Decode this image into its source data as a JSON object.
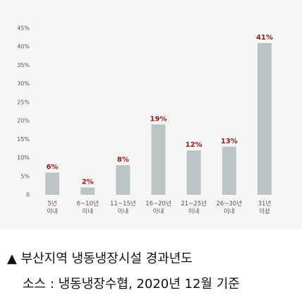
{
  "chart_data": {
    "type": "bar",
    "title": "▲ 부산지역 냉동냉장시설 경과년도",
    "source": "소스 : 냉동냉장수협, 2020년 12월 기준",
    "categories": [
      "5년\n이내",
      "6~10년\n이내",
      "11~15년\n이내",
      "16~20년\n이내",
      "21~25년\n이내",
      "26~30년\n이내",
      "31년\n이상"
    ],
    "values": [
      6,
      2,
      8,
      19,
      12,
      13,
      41
    ],
    "value_labels": [
      "6%",
      "2%",
      "8%",
      "19%",
      "12%",
      "13%",
      "41%"
    ],
    "color": "#bcc5c5",
    "ylim": [
      0,
      45
    ],
    "yticks": [
      0,
      {
        "value": 5,
        "label": "5%"
      },
      {
        "value": 10,
        "label": "10%"
      },
      {
        "value": 15,
        "label": "15%"
      },
      {
        "value": 20,
        "label": "20%"
      },
      {
        "value": 25,
        "label": "25%"
      },
      {
        "value": 30,
        "label": "30%"
      },
      {
        "value": 35,
        "label": "35%"
      },
      {
        "value": 40,
        "label": "40%"
      },
      {
        "value": 45,
        "label": "45%"
      }
    ],
    "grid": false
  }
}
